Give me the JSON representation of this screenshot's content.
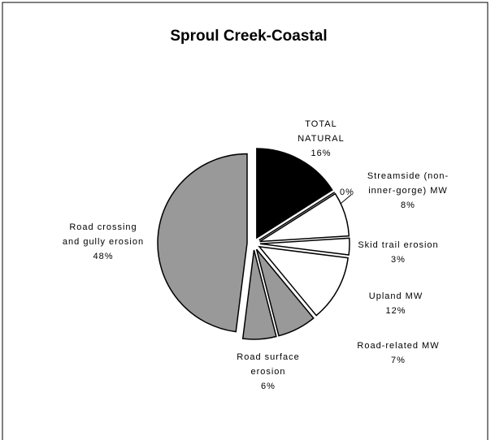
{
  "chart_data": {
    "type": "pie",
    "title": "Sproul Creek-Coastal",
    "categories": [
      "TOTAL\nNATURAL",
      null,
      "Streamside (non-\ninner-gorge) MW",
      "Skid trail erosion",
      "Upland MW",
      "Road-related MW",
      "Road surface\nerosion",
      "Road crossing\nand gully erosion"
    ],
    "values": [
      16,
      0,
      8,
      3,
      12,
      7,
      6,
      48
    ],
    "value_labels": [
      "16%",
      "0%",
      "8%",
      "3%",
      "12%",
      "7%",
      "6%",
      "48%"
    ],
    "colors": [
      "#000000",
      "#ffffff",
      "#ffffff",
      "#ffffff",
      "#ffffff",
      "#999999",
      "#999999",
      "#999999"
    ]
  }
}
